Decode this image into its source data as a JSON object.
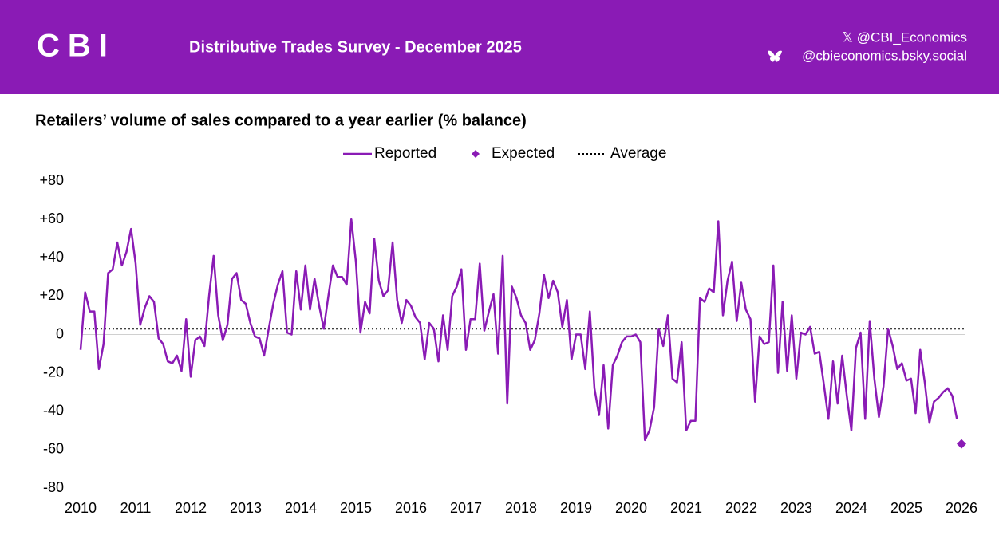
{
  "header": {
    "logo": "CBI",
    "title": "Distributive Trades Survey - December 2025",
    "x_handle": "𝕏 @CBI_Economics",
    "bsky_handle": "@cbieconomics.bsky.social"
  },
  "chart_data": {
    "type": "line",
    "title": "Retailers’ volume of sales compared to a year earlier (% balance)",
    "x": [
      2010,
      2010.083,
      2010.167,
      2010.25,
      2010.333,
      2010.417,
      2010.5,
      2010.583,
      2010.667,
      2010.75,
      2010.833,
      2010.917,
      2011,
      2011.083,
      2011.167,
      2011.25,
      2011.333,
      2011.417,
      2011.5,
      2011.583,
      2011.667,
      2011.75,
      2011.833,
      2011.917,
      2012,
      2012.083,
      2012.167,
      2012.25,
      2012.333,
      2012.417,
      2012.5,
      2012.583,
      2012.667,
      2012.75,
      2012.833,
      2012.917,
      2013,
      2013.083,
      2013.167,
      2013.25,
      2013.333,
      2013.417,
      2013.5,
      2013.583,
      2013.667,
      2013.75,
      2013.833,
      2013.917,
      2014,
      2014.083,
      2014.167,
      2014.25,
      2014.333,
      2014.417,
      2014.5,
      2014.583,
      2014.667,
      2014.75,
      2014.833,
      2014.917,
      2015,
      2015.083,
      2015.167,
      2015.25,
      2015.333,
      2015.417,
      2015.5,
      2015.583,
      2015.667,
      2015.75,
      2015.833,
      2015.917,
      2016,
      2016.083,
      2016.167,
      2016.25,
      2016.333,
      2016.417,
      2016.5,
      2016.583,
      2016.667,
      2016.75,
      2016.833,
      2016.917,
      2017,
      2017.083,
      2017.167,
      2017.25,
      2017.333,
      2017.417,
      2017.5,
      2017.583,
      2017.667,
      2017.75,
      2017.833,
      2017.917,
      2018,
      2018.083,
      2018.167,
      2018.25,
      2018.333,
      2018.417,
      2018.5,
      2018.583,
      2018.667,
      2018.75,
      2018.833,
      2018.917,
      2019,
      2019.083,
      2019.167,
      2019.25,
      2019.333,
      2019.417,
      2019.5,
      2019.583,
      2019.667,
      2019.75,
      2019.833,
      2019.917,
      2020,
      2020.083,
      2020.167,
      2020.25,
      2020.333,
      2020.417,
      2020.5,
      2020.583,
      2020.667,
      2020.75,
      2020.833,
      2020.917,
      2021,
      2021.083,
      2021.167,
      2021.25,
      2021.333,
      2021.417,
      2021.5,
      2021.583,
      2021.667,
      2021.75,
      2021.833,
      2021.917,
      2022,
      2022.083,
      2022.167,
      2022.25,
      2022.333,
      2022.417,
      2022.5,
      2022.583,
      2022.667,
      2022.75,
      2022.833,
      2022.917,
      2023,
      2023.083,
      2023.167,
      2023.25,
      2023.333,
      2023.417,
      2023.5,
      2023.583,
      2023.667,
      2023.75,
      2023.833,
      2023.917,
      2024,
      2024.083,
      2024.167,
      2024.25,
      2024.333,
      2024.417,
      2024.5,
      2024.583,
      2024.667,
      2024.75,
      2024.833,
      2024.917,
      2025,
      2025.083,
      2025.167,
      2025.25,
      2025.333,
      2025.417,
      2025.5,
      2025.583,
      2025.667,
      2025.75,
      2025.833,
      2025.917
    ],
    "series": [
      {
        "name": "Reported",
        "color": "#8a1bb5",
        "values": [
          -8,
          22,
          12,
          12,
          -18,
          -5,
          32,
          34,
          48,
          36,
          43,
          55,
          37,
          5,
          14,
          20,
          17,
          -2,
          -5,
          -14,
          -15,
          -11,
          -19,
          8,
          -22,
          -3,
          -1,
          -6,
          20,
          41,
          10,
          -3,
          5,
          29,
          32,
          18,
          16,
          6,
          -1,
          -2,
          -11,
          3,
          16,
          26,
          33,
          1,
          0,
          33,
          13,
          36,
          13,
          29,
          15,
          3,
          20,
          36,
          30,
          30,
          26,
          60,
          38,
          1,
          17,
          11,
          50,
          28,
          20,
          23,
          48,
          18,
          6,
          18,
          15,
          9,
          6,
          -13,
          6,
          3,
          -14,
          10,
          -8,
          20,
          25,
          34,
          -8,
          8,
          8,
          37,
          2,
          12,
          21,
          -10,
          41,
          -36,
          25,
          19,
          10,
          6,
          -8,
          -3,
          11,
          31,
          19,
          28,
          22,
          4,
          18,
          -13,
          0,
          0,
          -18,
          12,
          -28,
          -42,
          -16,
          -49,
          -16,
          -11,
          -4,
          -1,
          -1,
          0,
          -4,
          -55,
          -50,
          -38,
          3,
          -6,
          10,
          -23,
          -25,
          -4,
          -50,
          -45,
          -45,
          19,
          17,
          24,
          22,
          59,
          10,
          28,
          38,
          7,
          27,
          13,
          8,
          -35,
          -1,
          -5,
          -4,
          36,
          -20,
          17,
          -19,
          10,
          -23,
          1,
          0,
          4,
          -10,
          -9,
          -26,
          -44,
          -14,
          -36,
          -11,
          -32,
          -50,
          -7,
          1,
          -44,
          7,
          -23,
          -43,
          -27,
          3,
          -6,
          -18,
          -15,
          -24,
          -23,
          -41,
          -8,
          -25,
          -46,
          -35,
          -33,
          -30,
          -28,
          -32,
          -44
        ]
      },
      {
        "name": "Expected",
        "color": "#8a1bb5",
        "marker": "diamond",
        "x": [
          2026
        ],
        "values": [
          -57
        ]
      }
    ],
    "average": {
      "name": "Average",
      "value": 3,
      "color": "#000000"
    },
    "xlim": [
      2010,
      2026
    ],
    "xticks": [
      2010,
      2011,
      2012,
      2013,
      2014,
      2015,
      2016,
      2017,
      2018,
      2019,
      2020,
      2021,
      2022,
      2023,
      2024,
      2025,
      2026
    ],
    "ylim": [
      -80,
      80
    ],
    "yticks": [
      -80,
      -60,
      -40,
      -20,
      0,
      {
        "value": 20,
        "label": "+20"
      },
      {
        "value": 40,
        "label": "+40"
      },
      {
        "value": 60,
        "label": "+60"
      },
      {
        "value": 80,
        "label": "+80"
      }
    ],
    "legend": "top"
  }
}
